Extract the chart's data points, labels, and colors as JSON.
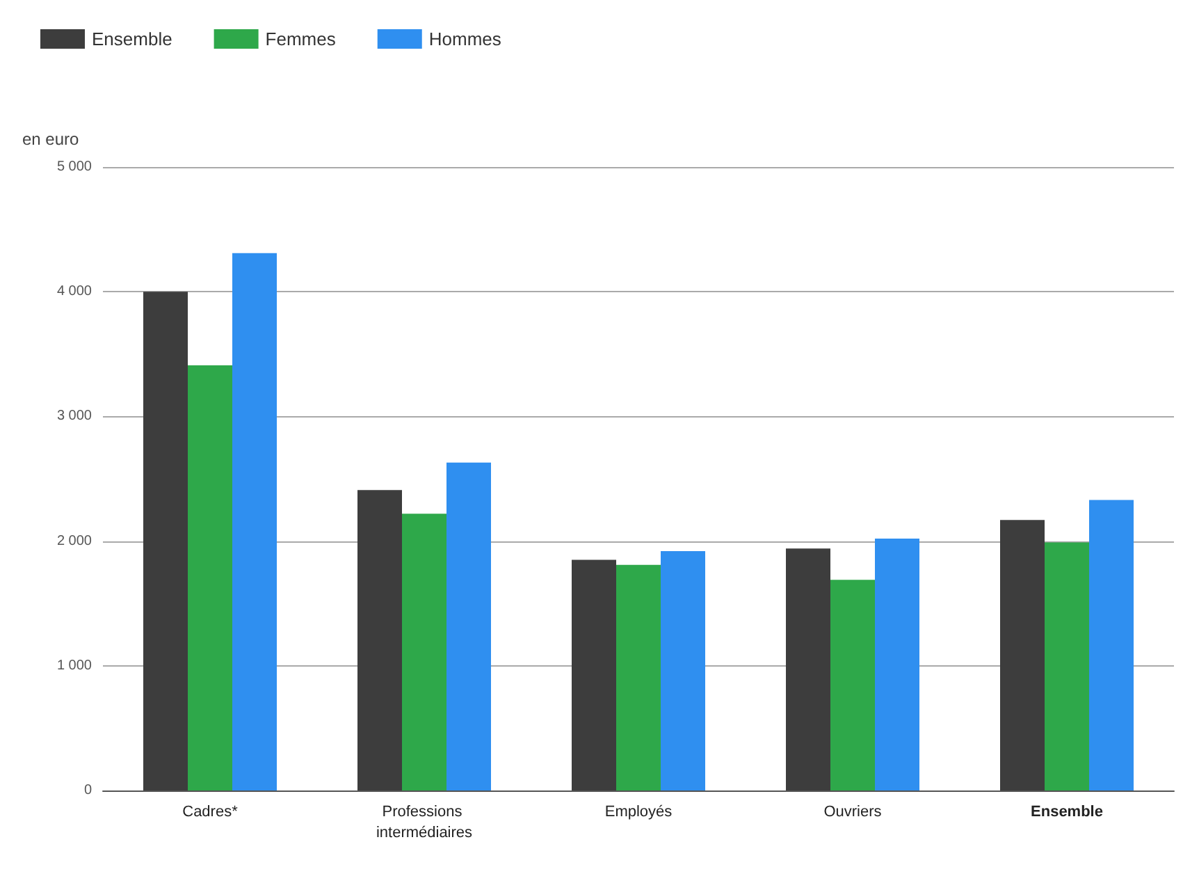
{
  "chart_data": {
    "type": "bar",
    "ylabel": "en euro",
    "categories": [
      "Cadres*",
      "Professions intermédiaires",
      "Employés",
      "Ouvriers",
      "Ensemble"
    ],
    "series": [
      {
        "name": "Ensemble",
        "color": "#3d3d3d",
        "values": [
          4000,
          2410,
          1850,
          1940,
          2170
        ]
      },
      {
        "name": "Femmes",
        "color": "#2ea84a",
        "values": [
          3410,
          2220,
          1810,
          1690,
          1990
        ]
      },
      {
        "name": "Hommes",
        "color": "#2f8ff0",
        "values": [
          4310,
          2630,
          1920,
          2020,
          2330
        ]
      }
    ],
    "ylim": [
      0,
      5000
    ],
    "yticks": [
      {
        "value": 0,
        "label": "0"
      },
      {
        "value": 1000,
        "label": "1 000"
      },
      {
        "value": 2000,
        "label": "2 000"
      },
      {
        "value": 3000,
        "label": "3 000"
      },
      {
        "value": 4000,
        "label": "4 000"
      },
      {
        "value": 5000,
        "label": "5 000"
      }
    ],
    "grid": "y",
    "legend": "top left"
  }
}
